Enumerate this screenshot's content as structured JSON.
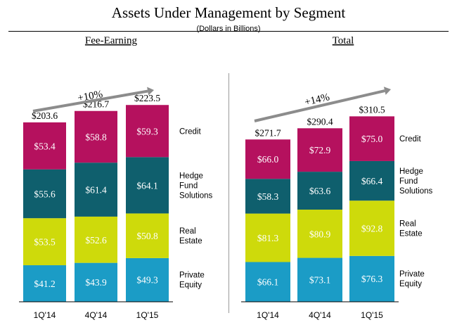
{
  "title": "Assets Under Management by Segment",
  "subtitle": "(Dollars in Billions)",
  "colors": {
    "credit": "#B5115E",
    "hedge": "#0F5F6D",
    "real_estate": "#CEDA0B",
    "private_equity": "#1B9CC6",
    "arrow": "#8C8C8C",
    "axis": "#000000",
    "divider": "#9A9A9A"
  },
  "legend": [
    "Credit",
    "Hedge\nFund\nSolutions",
    "Real\nEstate",
    "Private\nEquity"
  ],
  "chart_data": [
    {
      "type": "bar",
      "stacked": true,
      "title": "Fee-Earning",
      "categories": [
        "1Q'14",
        "4Q'14",
        "1Q'15"
      ],
      "series": [
        {
          "name": "Private Equity",
          "values": [
            41.2,
            43.9,
            49.3
          ],
          "labels": [
            "$41.2",
            "$43.9",
            "$49.3"
          ]
        },
        {
          "name": "Real Estate",
          "values": [
            53.5,
            52.6,
            50.8
          ],
          "labels": [
            "$53.5",
            "$52.6",
            "$50.8"
          ]
        },
        {
          "name": "Hedge Fund Solutions",
          "values": [
            55.6,
            61.4,
            64.1
          ],
          "labels": [
            "$55.6",
            "$61.4",
            "$64.1"
          ]
        },
        {
          "name": "Credit",
          "values": [
            53.4,
            58.8,
            59.3
          ],
          "labels": [
            "$53.4",
            "$58.8",
            "$59.3"
          ]
        }
      ],
      "totals": [
        203.6,
        216.7,
        223.5
      ],
      "total_labels": [
        "$203.6",
        "$216.7",
        "$223.5"
      ],
      "growth": "+10%"
    },
    {
      "type": "bar",
      "stacked": true,
      "title": "Total",
      "categories": [
        "1Q'14",
        "4Q'14",
        "1Q'15"
      ],
      "series": [
        {
          "name": "Private Equity",
          "values": [
            66.1,
            73.1,
            76.3
          ],
          "labels": [
            "$66.1",
            "$73.1",
            "$76.3"
          ]
        },
        {
          "name": "Real Estate",
          "values": [
            81.3,
            80.9,
            92.8
          ],
          "labels": [
            "$81.3",
            "$80.9",
            "$92.8"
          ]
        },
        {
          "name": "Hedge Fund Solutions",
          "values": [
            58.3,
            63.6,
            66.4
          ],
          "labels": [
            "$58.3",
            "$63.6",
            "$66.4"
          ]
        },
        {
          "name": "Credit",
          "values": [
            66.0,
            72.9,
            75.0
          ],
          "labels": [
            "$66.0",
            "$72.9",
            "$75.0"
          ]
        }
      ],
      "totals": [
        271.7,
        290.4,
        310.5
      ],
      "total_labels": [
        "$271.7",
        "$290.4",
        "$310.5"
      ],
      "growth": "+14%"
    }
  ]
}
